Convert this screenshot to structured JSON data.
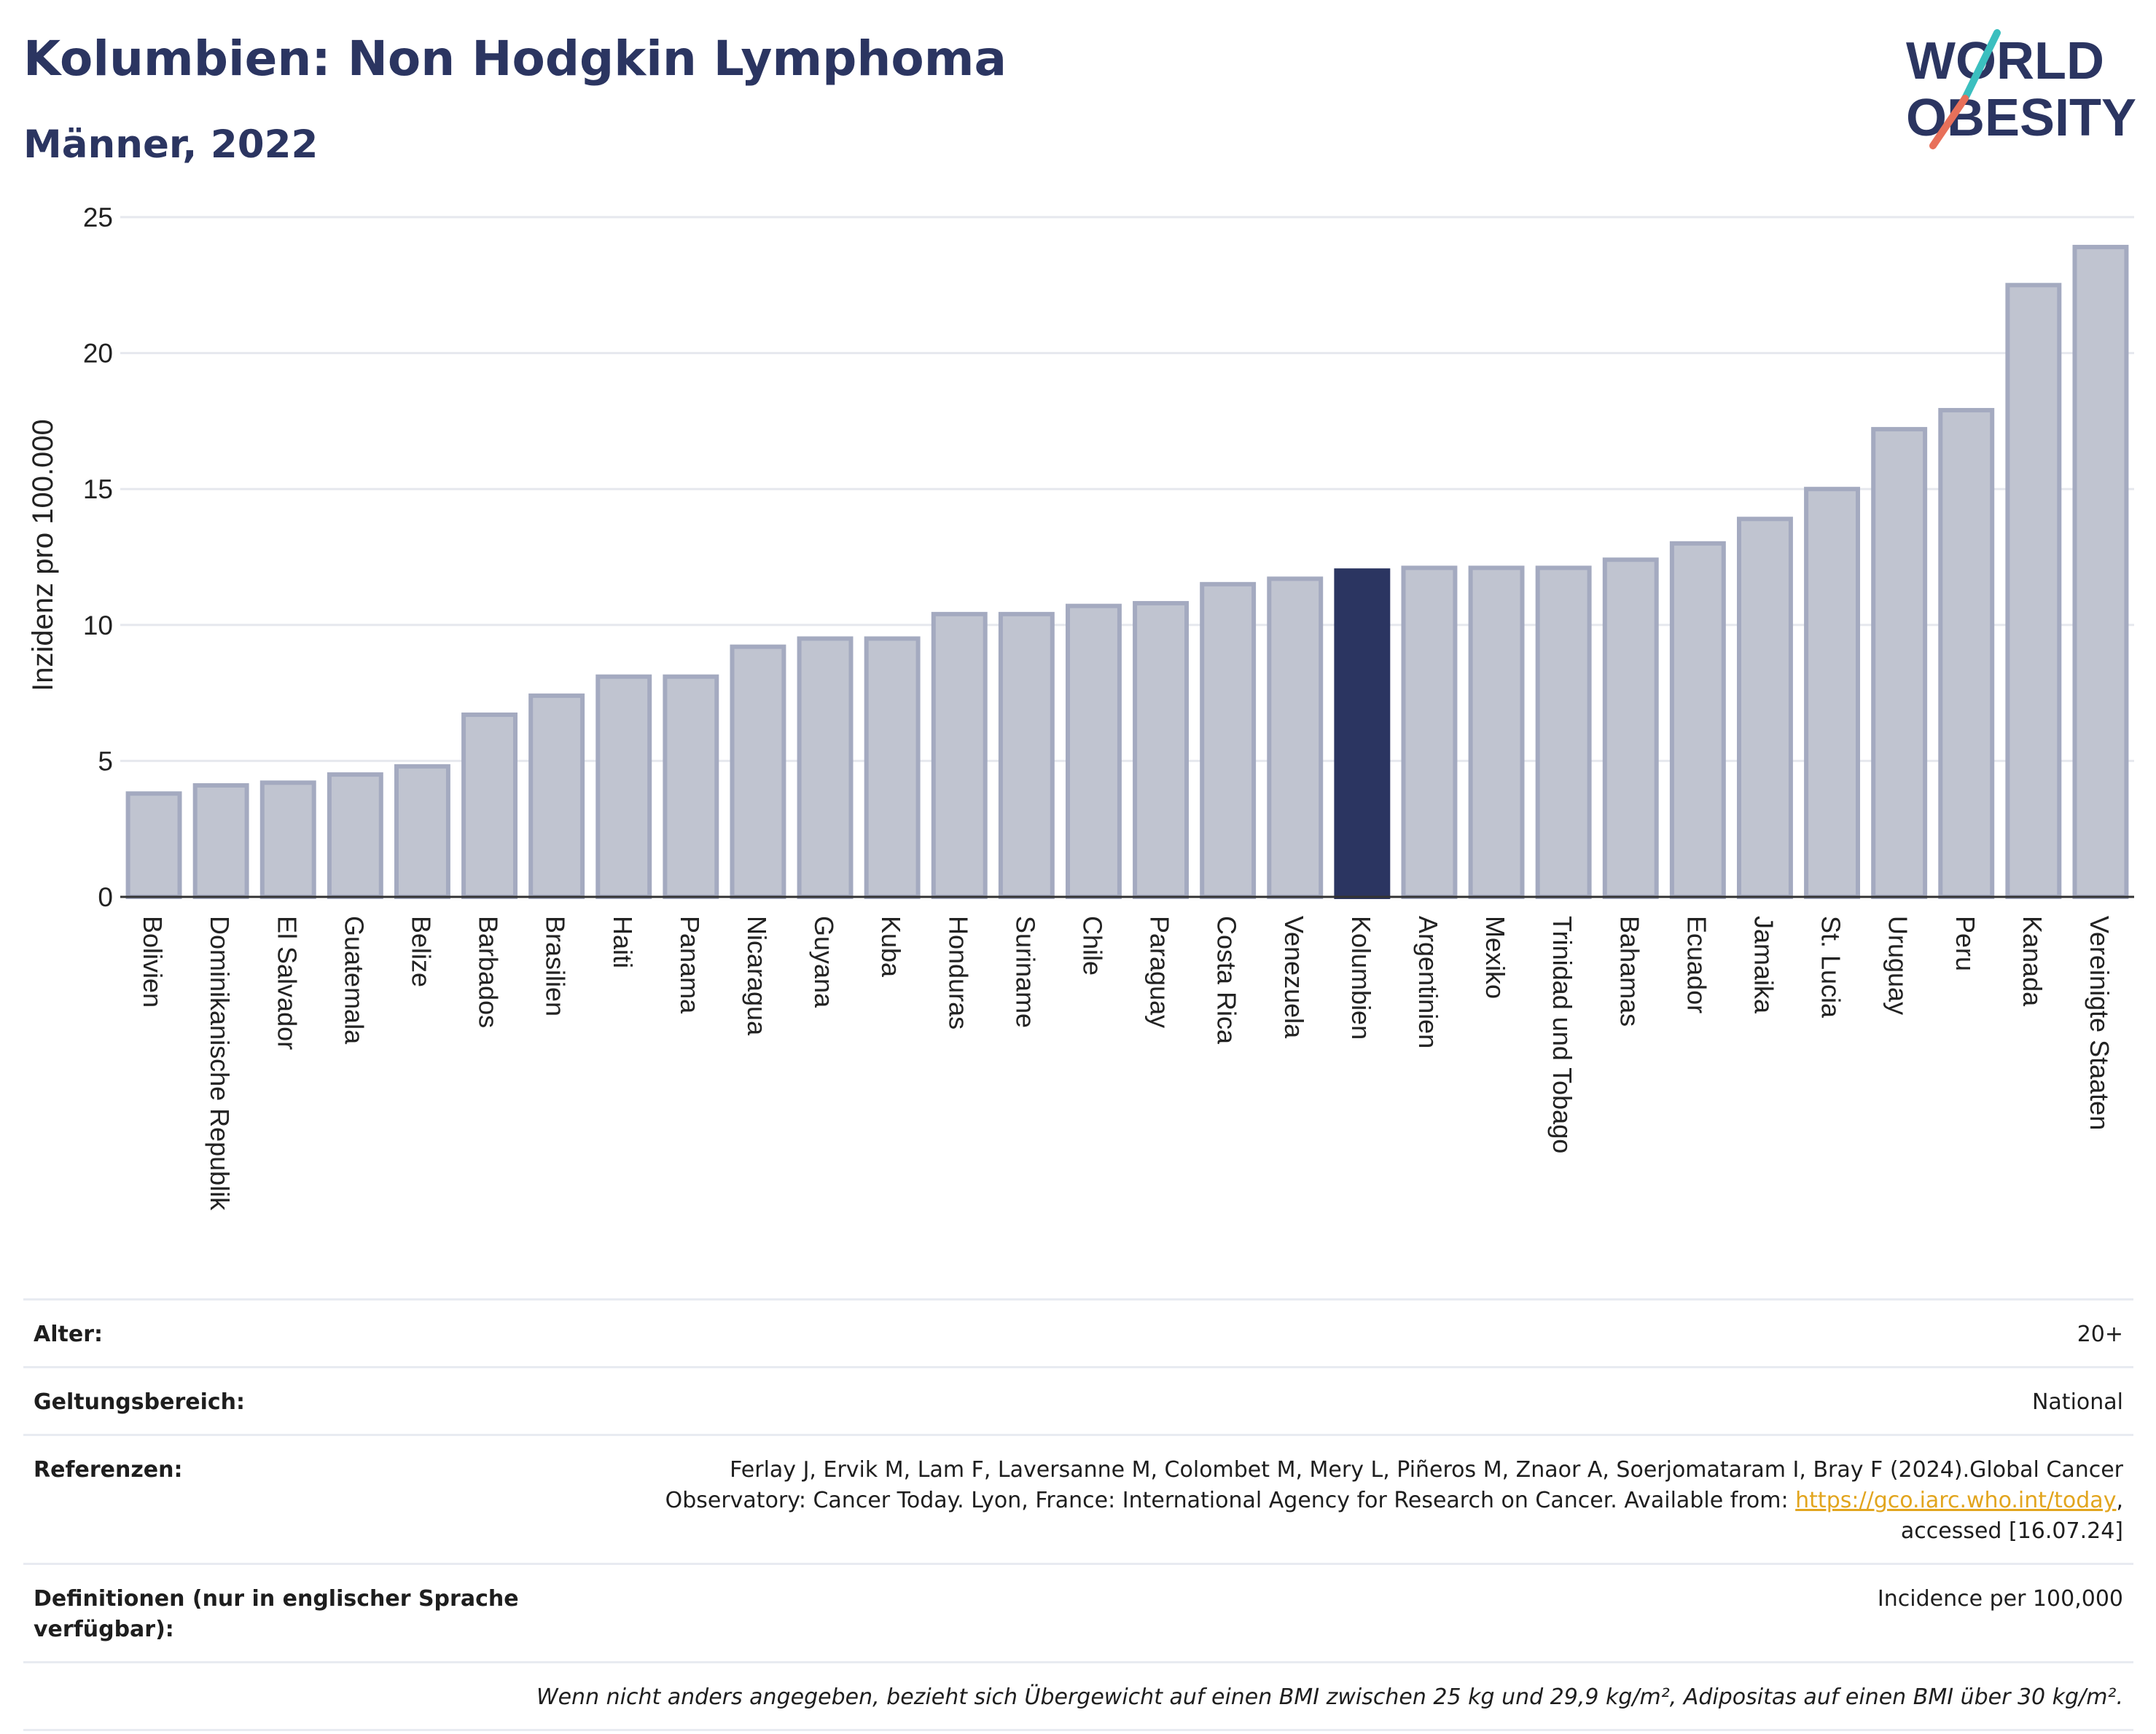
{
  "header": {
    "title": "Kolumbien: Non Hodgkin Lymphoma",
    "subtitle": "Männer, 2022"
  },
  "logo": {
    "line1": "WORLD",
    "line2": "OBESITY",
    "colors": {
      "text": "#2b3561",
      "slash_top": "#3bbfbf",
      "slash_bottom": "#e8705a"
    }
  },
  "chart_data": {
    "type": "bar",
    "ylabel": "Inzidenz pro 100.000",
    "ylim": [
      0,
      25
    ],
    "yticks": [
      0,
      5,
      10,
      15,
      20,
      25
    ],
    "grid": true,
    "highlight": "Kolumbien",
    "colors": {
      "bar": "#c0c4d0",
      "bar_border": "#a4aac0",
      "highlight": "#2b3561"
    },
    "categories": [
      "Bolivien",
      "Dominikanische Republik",
      "El Salvador",
      "Guatemala",
      "Belize",
      "Barbados",
      "Brasilien",
      "Haiti",
      "Panama",
      "Nicaragua",
      "Guyana",
      "Kuba",
      "Honduras",
      "Suriname",
      "Chile",
      "Paraguay",
      "Costa Rica",
      "Venezuela",
      "Kolumbien",
      "Argentinien",
      "Mexiko",
      "Trinidad und Tobago",
      "Bahamas",
      "Ecuador",
      "Jamaika",
      "St. Lucia",
      "Uruguay",
      "Peru",
      "Kanada",
      "Vereinigte Staaten"
    ],
    "values": [
      3.8,
      4.1,
      4.2,
      4.5,
      4.8,
      6.7,
      7.4,
      8.1,
      8.1,
      9.2,
      9.5,
      9.5,
      10.4,
      10.4,
      10.7,
      10.8,
      11.5,
      11.7,
      12.0,
      12.1,
      12.1,
      12.1,
      12.4,
      13.0,
      13.9,
      15.0,
      17.2,
      17.9,
      22.5,
      23.9
    ]
  },
  "meta": {
    "age_label": "Alter:",
    "age_value": "20+",
    "scope_label": "Geltungsbereich:",
    "scope_value": "National",
    "refs_label": "Referenzen:",
    "refs_text_1": "Ferlay J, Ervik M, Lam F, Laversanne M, Colombet M, Mery L, Piñeros M, Znaor A, Soerjomataram I, Bray F (2024).Global Cancer",
    "refs_text_2": "Observatory: Cancer Today. Lyon, France: International Agency for Research on Cancer. Available from: ",
    "refs_link": "https://gco.iarc.who.int/today",
    "refs_text_3": ",",
    "refs_text_4": "accessed [16.07.24]",
    "defs_label": "Definitionen (nur in englischer Sprache verfügbar):",
    "defs_value": "Incidence per 100,000",
    "note": "Wenn nicht anders angegeben, bezieht sich Übergewicht auf einen BMI zwischen 25 kg und 29,9 kg/m², Adipositas auf einen BMI über 30 kg/m²."
  }
}
